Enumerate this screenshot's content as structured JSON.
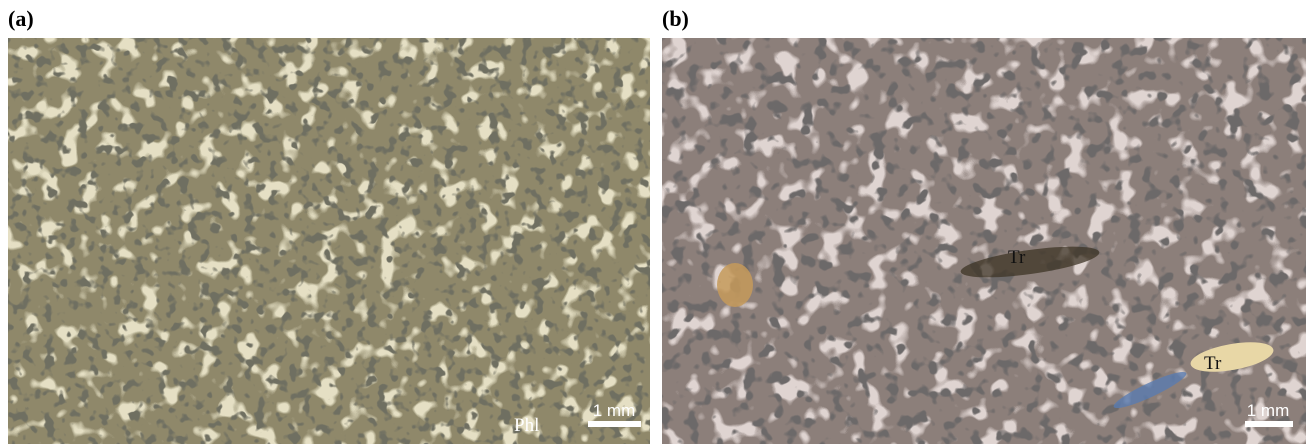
{
  "panels": [
    {
      "label": "(a)",
      "annotations": [
        "Phl"
      ],
      "scale_bar": "1 mm"
    },
    {
      "label": "(b)",
      "annotations": [
        "Tr",
        "Tr"
      ],
      "scale_bar": "1 mm"
    }
  ]
}
